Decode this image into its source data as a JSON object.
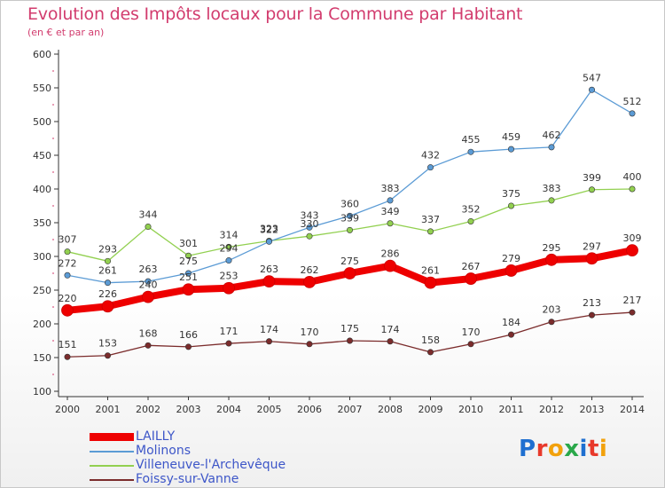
{
  "chart_data": {
    "type": "line",
    "title": "Evolution des Impôts locaux pour la Commune par Habitant",
    "subtitle": "(en € et par an)",
    "xlabel": "",
    "ylabel": "",
    "x": [
      "2000",
      "2001",
      "2002",
      "2003",
      "2004",
      "2005",
      "2006",
      "2007",
      "2008",
      "2009",
      "2010",
      "2011",
      "2012",
      "2013",
      "2014"
    ],
    "ylim": [
      100,
      600
    ],
    "yticks": [
      "100",
      "150",
      "200",
      "250",
      "300",
      "350",
      "400",
      "450",
      "500",
      "550",
      "600"
    ],
    "grid": false,
    "legend_position": "bottom-left",
    "series": [
      {
        "name": "LAILLY",
        "color": "#ee0000",
        "values": [
          220,
          226,
          240,
          251,
          253,
          263,
          262,
          275,
          286,
          261,
          267,
          279,
          295,
          297,
          309
        ]
      },
      {
        "name": "Molinons",
        "color": "#5b9bd5",
        "values": [
          272,
          261,
          263,
          275,
          294,
          322,
          343,
          360,
          383,
          432,
          455,
          459,
          462,
          547,
          512
        ]
      },
      {
        "name": "Villeneuve-l'Archevêque",
        "color": "#92d050",
        "values": [
          307,
          293,
          344,
          301,
          314,
          323,
          330,
          339,
          349,
          337,
          352,
          375,
          383,
          399,
          400
        ]
      },
      {
        "name": "Foissy-sur-Vanne",
        "color": "#7b2c2c",
        "values": [
          151,
          153,
          168,
          166,
          171,
          174,
          170,
          175,
          174,
          158,
          170,
          184,
          203,
          213,
          217
        ]
      }
    ]
  },
  "watermark": {
    "text": "Proxiti"
  }
}
